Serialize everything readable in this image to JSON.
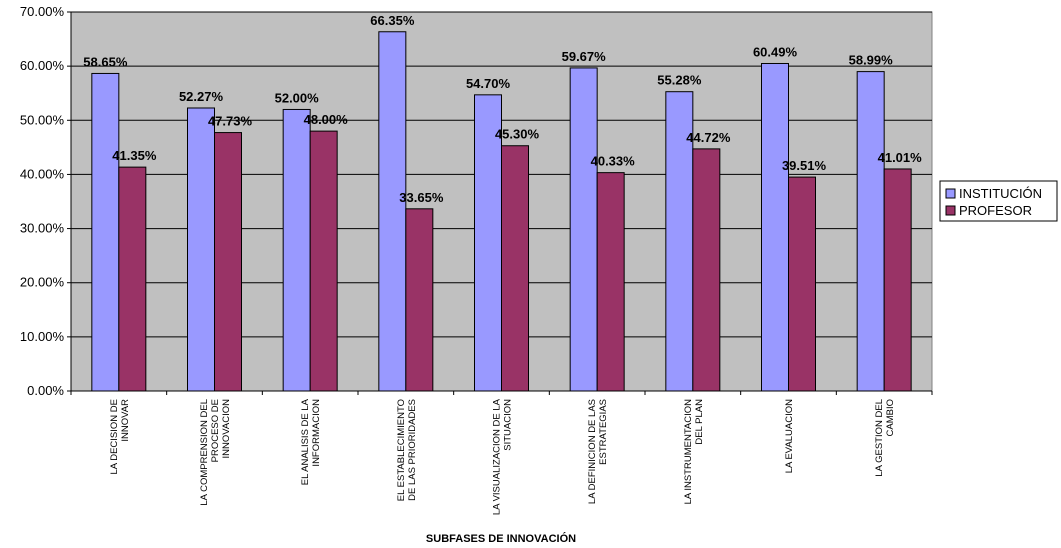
{
  "chart_data": {
    "type": "bar",
    "title": "",
    "xlabel": "SUBFASES DE INNOVACIÓN",
    "ylabel": "",
    "ylim": [
      0,
      70
    ],
    "yticks": [
      "0.00%",
      "10.00%",
      "20.00%",
      "30.00%",
      "40.00%",
      "50.00%",
      "60.00%",
      "70.00%"
    ],
    "categories": [
      [
        "LA DECISION DE",
        "INNOVAR"
      ],
      [
        "LA COMPRENSION DEL",
        "PROCESO DE",
        "INNOVACION"
      ],
      [
        "EL ANALISIS DE LA",
        "INFORMACION"
      ],
      [
        "EL ESTABLECIMIENTO",
        "DE LAS PRIORIDADES"
      ],
      [
        "LA VISUALIZACION DE LA",
        "SITUACION"
      ],
      [
        "LA DEFINICION DE LAS",
        "ESTRATEGIAS"
      ],
      [
        "LA INSTRUMENTACION",
        "DEL PLAN"
      ],
      [
        "LA EVALUACION"
      ],
      [
        "LA GESTION DEL",
        "CAMBIO"
      ]
    ],
    "series": [
      {
        "name": "INSTITUCIÓN",
        "color": "#9999ff",
        "values": [
          58.65,
          52.27,
          52.0,
          66.35,
          54.7,
          59.67,
          55.28,
          60.49,
          58.99
        ],
        "labels": [
          "58.65%",
          "52.27%",
          "52.00%",
          "66.35%",
          "54.70%",
          "59.67%",
          "55.28%",
          "60.49%",
          "58.99%"
        ]
      },
      {
        "name": "PROFESOR",
        "color": "#993366",
        "values": [
          41.35,
          47.73,
          48.0,
          33.65,
          45.3,
          40.33,
          44.72,
          39.51,
          41.01
        ],
        "labels": [
          "41.35%",
          "47.73%",
          "48.00%",
          "33.65%",
          "45.30%",
          "40.33%",
          "44.72%",
          "39.51%",
          "41.01%"
        ]
      }
    ],
    "plot_background": "#c0c0c0",
    "grid": true,
    "legend": "right"
  }
}
